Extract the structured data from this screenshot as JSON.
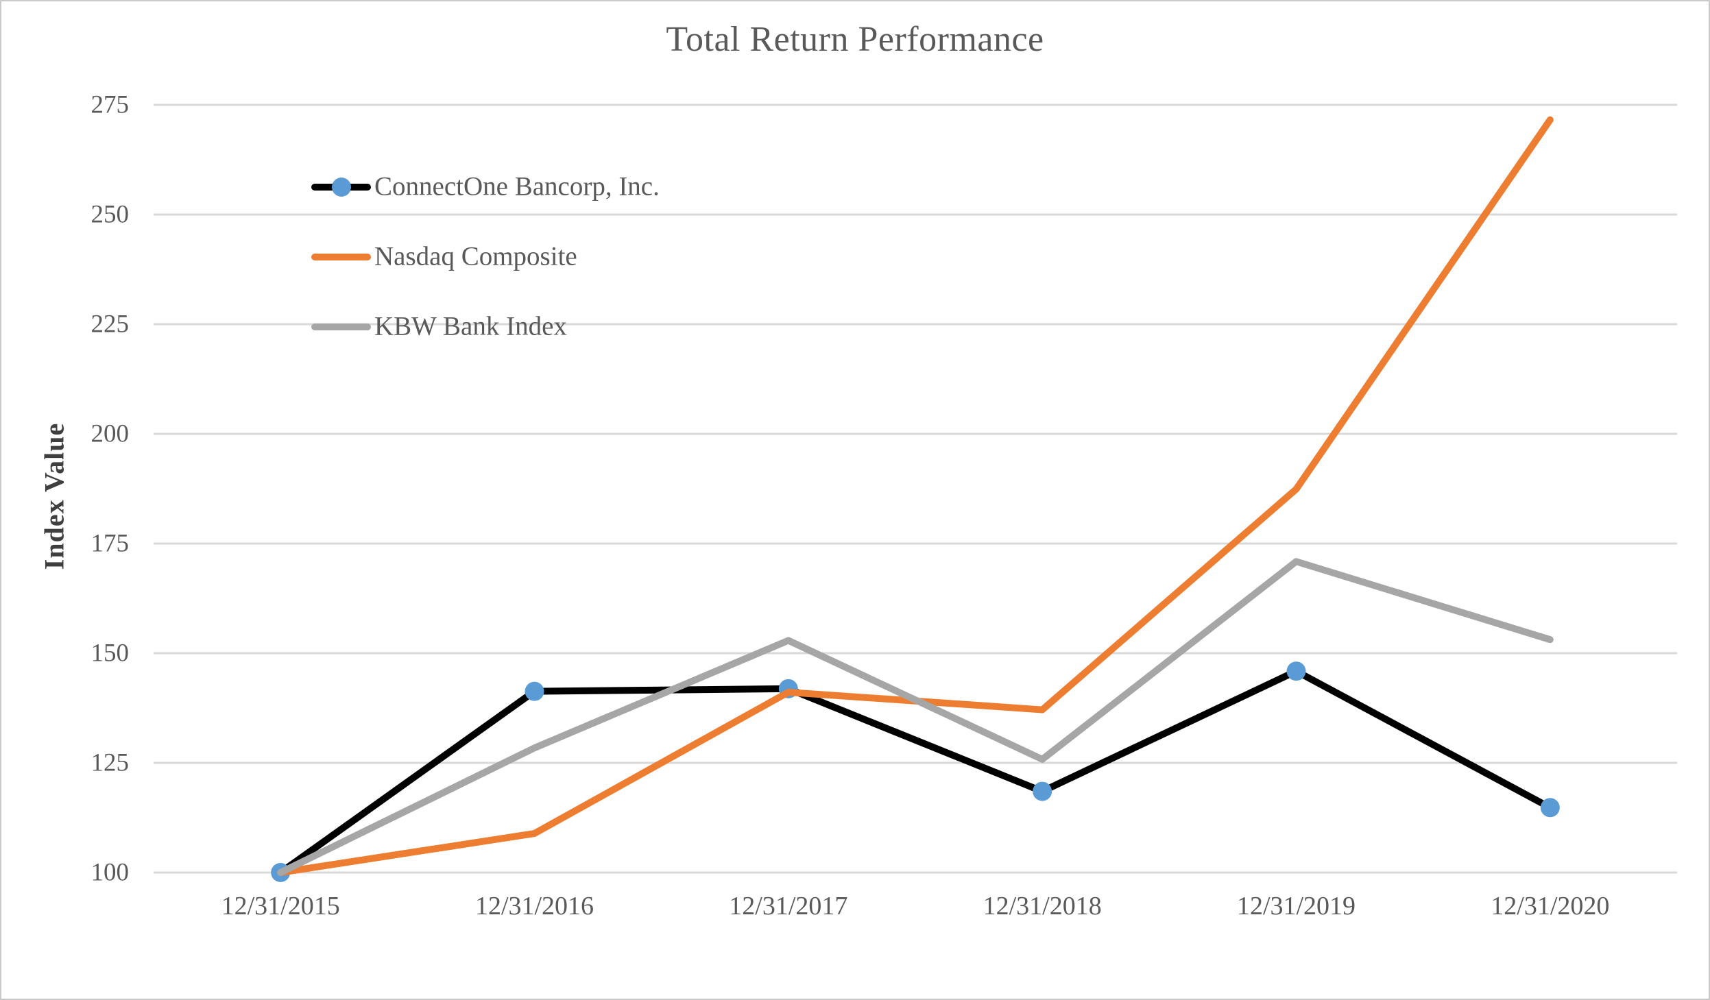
{
  "chart_data": {
    "type": "line",
    "title": "Total Return Performance",
    "xlabel": "",
    "ylabel": "Index Value",
    "categories": [
      "12/31/2015",
      "12/31/2016",
      "12/31/2017",
      "12/31/2018",
      "12/31/2019",
      "12/31/2020"
    ],
    "series": [
      {
        "name": "ConnectOne Bancorp, Inc.",
        "color": "#000000",
        "has_markers": true,
        "marker_color": "#5B9BD5",
        "values": [
          100.0,
          141.3,
          141.9,
          118.5,
          145.9,
          114.8
        ]
      },
      {
        "name": "Nasdaq Composite",
        "color": "#ED7D31",
        "has_markers": false,
        "marker_color": null,
        "values": [
          100.0,
          108.9,
          141.1,
          137.1,
          187.4,
          271.6
        ]
      },
      {
        "name": "KBW Bank Index",
        "color": "#A6A6A6",
        "has_markers": false,
        "marker_color": null,
        "values": [
          100.0,
          128.4,
          152.9,
          125.8,
          170.9,
          153.1
        ]
      }
    ],
    "ylim": [
      100,
      275
    ],
    "ytick_step": 25,
    "ytick_labels": [
      "100",
      "125",
      "150",
      "175",
      "200",
      "225",
      "250",
      "275"
    ],
    "grid": true,
    "gridline_color": "#D9D9D9",
    "axis_text_color": "#595959",
    "legend_position": "inside-top-left",
    "legend_entries": [
      "ConnectOne Bancorp, Inc.",
      "Nasdaq Composite",
      "KBW Bank Index"
    ]
  }
}
